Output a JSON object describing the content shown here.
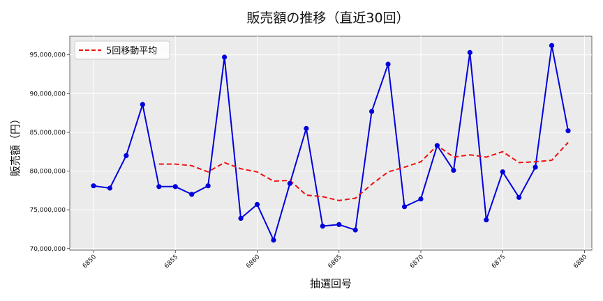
{
  "chart_data": {
    "type": "line",
    "title": "販売額の推移（直近30回）",
    "xlabel": "抽選回号",
    "ylabel": "販売額（円）",
    "x": [
      6850,
      6851,
      6852,
      6853,
      6854,
      6855,
      6856,
      6857,
      6858,
      6859,
      6860,
      6861,
      6862,
      6863,
      6864,
      6865,
      6866,
      6867,
      6868,
      6869,
      6870,
      6871,
      6872,
      6873,
      6874,
      6875,
      6876,
      6877,
      6878,
      6879
    ],
    "xticks": [
      6850,
      6855,
      6860,
      6865,
      6870,
      6875,
      6880
    ],
    "xtick_labels": [
      "6850",
      "6855",
      "6860",
      "6865",
      "6870",
      "6875",
      "6880"
    ],
    "xlim": [
      6848.55,
      6880.45
    ],
    "ylim": [
      69800000,
      97400000
    ],
    "yticks": [
      70000000,
      75000000,
      80000000,
      85000000,
      90000000,
      95000000
    ],
    "ytick_labels": [
      "70,000,000",
      "75,000,000",
      "80,000,000",
      "85,000,000",
      "90,000,000",
      "95,000,000"
    ],
    "grid": true,
    "legend_position": "top-left",
    "series": [
      {
        "color": "#0000dd",
        "style": "solid-with-markers",
        "values": [
          78100000,
          77800000,
          82000000,
          88600000,
          78000000,
          78000000,
          77000000,
          78100000,
          94700000,
          73900000,
          75700000,
          71100000,
          78400000,
          85500000,
          72900000,
          73100000,
          72400000,
          87700000,
          93800000,
          75400000,
          76400000,
          83300000,
          80100000,
          95300000,
          73700000,
          79900000,
          76600000,
          80500000,
          96200000,
          85200000
        ]
      },
      {
        "name": "5回移動平均",
        "color": "#ee1111",
        "style": "dashed",
        "x": [
          6854,
          6855,
          6856,
          6857,
          6858,
          6859,
          6860,
          6861,
          6862,
          6863,
          6864,
          6865,
          6866,
          6867,
          6868,
          6869,
          6870,
          6871,
          6872,
          6873,
          6874,
          6875,
          6876,
          6877,
          6878,
          6879
        ],
        "values": [
          80900000,
          80900000,
          80700000,
          79900000,
          81100000,
          80300000,
          79900000,
          78700000,
          78800000,
          76900000,
          76700000,
          76200000,
          76500000,
          78300000,
          79900000,
          80500000,
          81200000,
          83300000,
          81800000,
          82100000,
          81800000,
          82500000,
          81100000,
          81200000,
          81400000,
          83700000
        ]
      }
    ]
  }
}
